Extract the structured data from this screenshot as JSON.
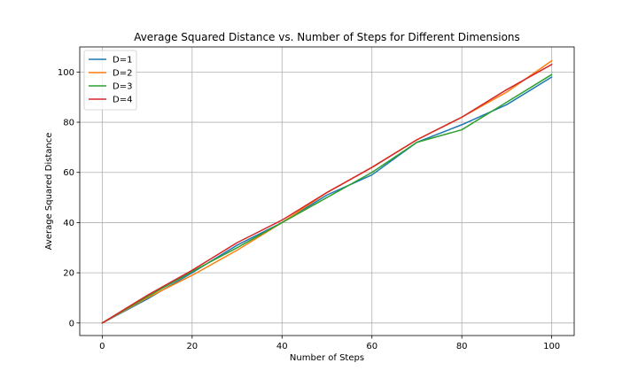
{
  "chart_data": {
    "type": "line",
    "title": "Average Squared Distance vs. Number of Steps for Different Dimensions",
    "xlabel": "Number of Steps",
    "ylabel": "Average Squared Distance",
    "xlim": [
      -5,
      105
    ],
    "ylim": [
      -5,
      110
    ],
    "xticks": [
      0,
      20,
      40,
      60,
      80,
      100
    ],
    "yticks": [
      0,
      20,
      40,
      60,
      80,
      100
    ],
    "grid": true,
    "legend_position": "top-left",
    "x": [
      0,
      10,
      20,
      30,
      40,
      50,
      60,
      70,
      80,
      90,
      100
    ],
    "series": [
      {
        "name": "D=1",
        "color": "#1f77b4",
        "values": [
          0,
          9.5,
          20,
          31,
          40,
          51,
          59,
          72,
          79,
          87,
          98
        ]
      },
      {
        "name": "D=2",
        "color": "#ff7f0e",
        "values": [
          0,
          10,
          19,
          29,
          40,
          52,
          62,
          73,
          82,
          92,
          104.5
        ]
      },
      {
        "name": "D=3",
        "color": "#2ca02c",
        "values": [
          0,
          10.5,
          20.5,
          30,
          40,
          50,
          60,
          72,
          77,
          88,
          99
        ]
      },
      {
        "name": "D=4",
        "color": "#d62728",
        "values": [
          0,
          11,
          21,
          32,
          41,
          52,
          62,
          73,
          82,
          93,
          103
        ]
      }
    ]
  }
}
